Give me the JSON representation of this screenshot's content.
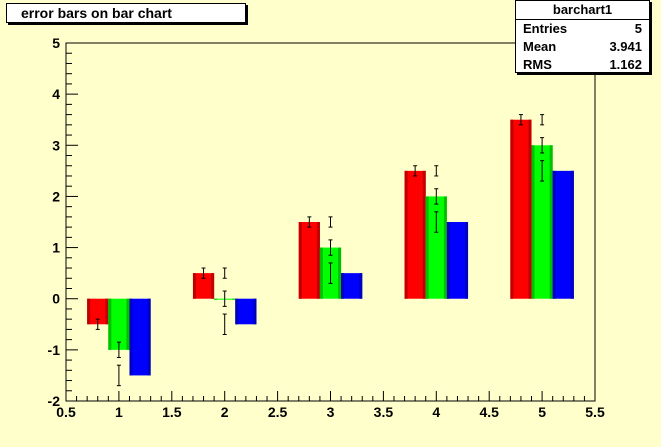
{
  "title": "error bars on bar chart",
  "stats": {
    "name": "barchart1",
    "rows": [
      {
        "label": "Entries",
        "value": "5"
      },
      {
        "label": "Mean",
        "value": "3.941"
      },
      {
        "label": "RMS",
        "value": "1.162"
      }
    ]
  },
  "chart_data": {
    "type": "bar",
    "title": "error bars on bar chart",
    "xlim": [
      0.5,
      5.5
    ],
    "ylim": [
      -2,
      5
    ],
    "x_ticks": [
      "0.5",
      "1",
      "1.5",
      "2",
      "2.5",
      "3",
      "3.5",
      "4",
      "4.5",
      "5",
      "5.5"
    ],
    "y_ticks": [
      "-2",
      "-1",
      "0",
      "1",
      "2",
      "3",
      "4",
      "5"
    ],
    "categories": [
      1,
      2,
      3,
      4,
      5
    ],
    "series": [
      {
        "color": "#ff0000",
        "values": [
          -0.5,
          0.5,
          1.5,
          2.5,
          3.5
        ],
        "errors": [
          0.1,
          0.1,
          0.1,
          0.1,
          0.1
        ]
      },
      {
        "color": "#00ff00",
        "values": [
          -1.0,
          0.0,
          1.0,
          2.0,
          3.0
        ],
        "errors": [
          0.15,
          0.15,
          0.15,
          0.15,
          0.15
        ]
      },
      {
        "color": "#0000ff",
        "values": [
          -1.5,
          -0.5,
          0.5,
          1.5,
          2.5
        ],
        "errors": [
          0.0,
          0.0,
          0.0,
          0.0,
          0.0
        ]
      }
    ],
    "error_markers": [
      {
        "x": 1.0,
        "y": -1.5,
        "err": 0.2
      },
      {
        "x": 2.0,
        "y": 0.5,
        "err": 0.1
      },
      {
        "x": 2.0,
        "y": -0.5,
        "err": 0.2
      },
      {
        "x": 3.0,
        "y": 1.5,
        "err": 0.1
      },
      {
        "x": 3.0,
        "y": 0.5,
        "err": 0.2
      },
      {
        "x": 4.0,
        "y": 2.5,
        "err": 0.1
      },
      {
        "x": 4.0,
        "y": 1.5,
        "err": 0.2
      },
      {
        "x": 5.0,
        "y": 3.5,
        "err": 0.1
      },
      {
        "x": 5.0,
        "y": 2.5,
        "err": 0.2
      }
    ]
  }
}
